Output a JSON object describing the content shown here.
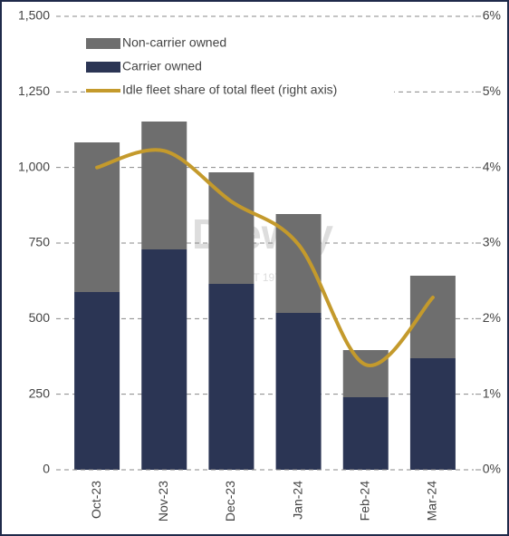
{
  "chart_data": {
    "type": "bar",
    "watermark": "Drewry",
    "watermark_sub": "EST 1970",
    "categories": [
      "Oct-23",
      "Nov-23",
      "Dec-23",
      "Jan-24",
      "Feb-24",
      "Mar-24"
    ],
    "series": [
      {
        "name": "Carrier owned",
        "color": "#2b3554",
        "values": [
          588,
          729,
          615,
          519,
          240,
          369
        ]
      },
      {
        "name": "Non-carrier owned",
        "color": "#6e6e6e",
        "values": [
          495,
          423,
          369,
          327,
          156,
          273
        ]
      },
      {
        "name": "Idle fleet share of total fleet (right axis)",
        "color": "#c49a2c",
        "type": "line",
        "axis": "y2",
        "values": [
          4.0,
          4.22,
          3.55,
          2.98,
          1.39,
          2.28
        ]
      }
    ],
    "stacked": true,
    "ylim": [
      0,
      1500
    ],
    "yticks": [
      0,
      250,
      500,
      750,
      {
        "value": 1000,
        "label": "1,000"
      },
      {
        "value": 1250,
        "label": "1,250"
      },
      {
        "value": 1500,
        "label": "1,500"
      }
    ],
    "y2lim": [
      0,
      6
    ],
    "y2ticks": [
      {
        "value": 0,
        "label": "0%"
      },
      {
        "value": 1,
        "label": "1%"
      },
      {
        "value": 2,
        "label": "2%"
      },
      {
        "value": 3,
        "label": "3%"
      },
      {
        "value": 4,
        "label": "4%"
      },
      {
        "value": 5,
        "label": "5%"
      },
      {
        "value": 6,
        "label": "6%"
      }
    ],
    "grid": true,
    "legend": "top-left"
  }
}
